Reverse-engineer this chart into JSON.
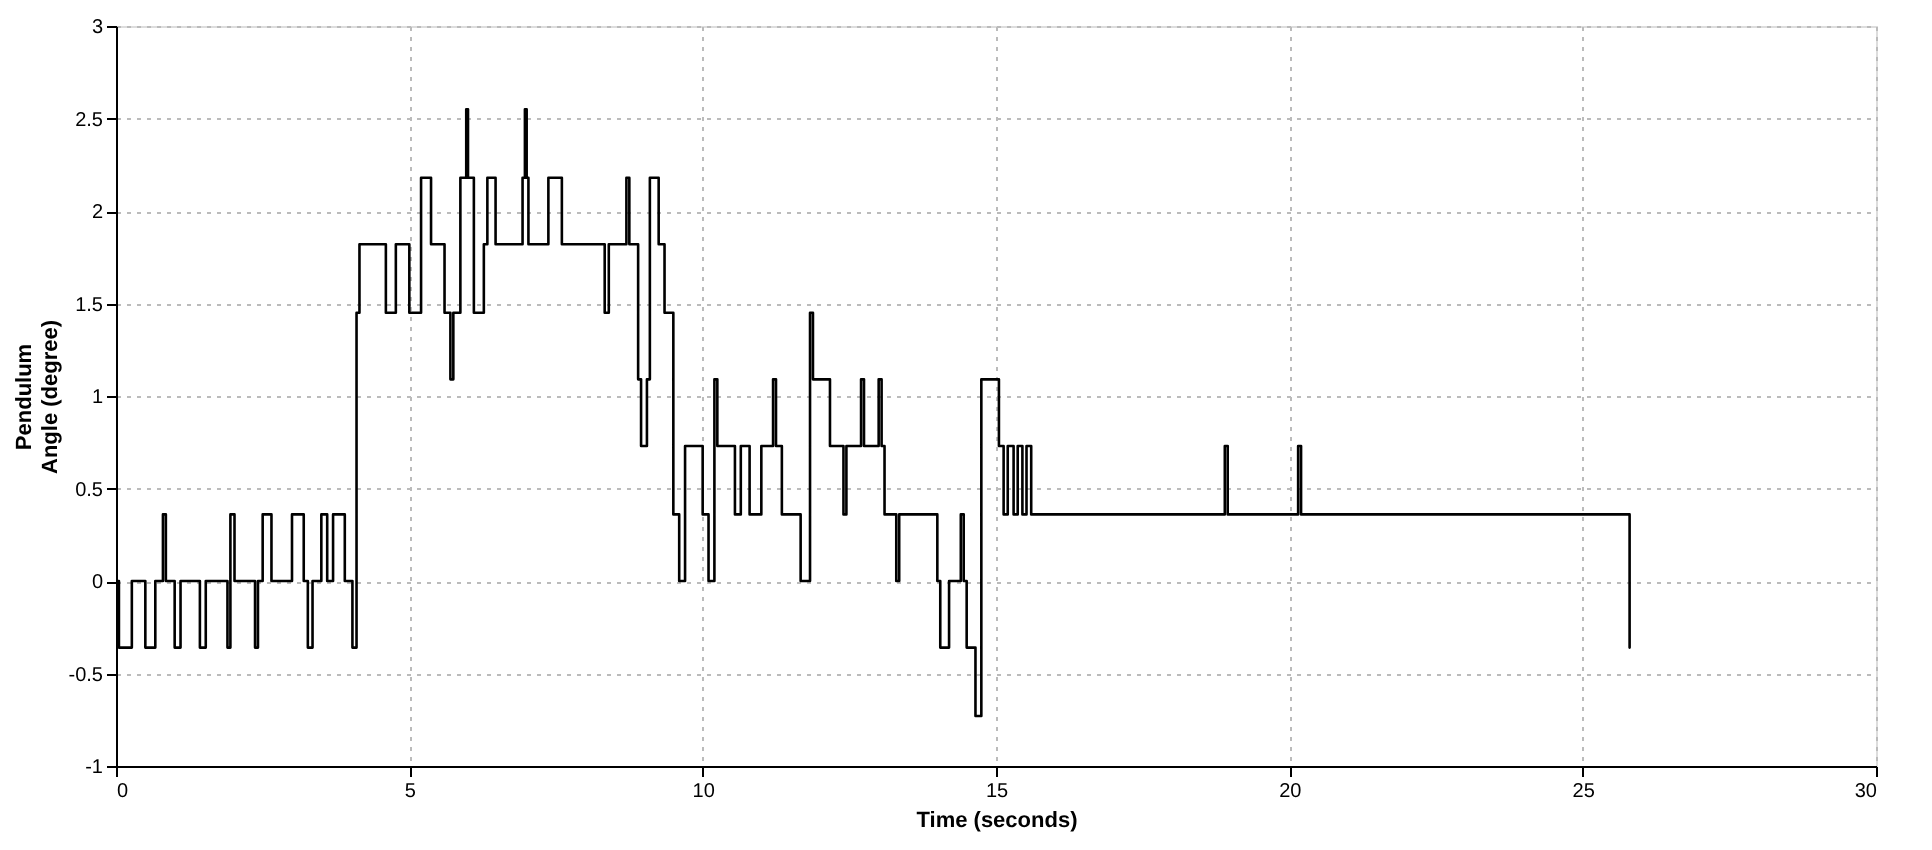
{
  "chart_data": {
    "type": "step",
    "xlabel": "Time (seconds)",
    "ylabel": "Pendulum Angle (degree)",
    "xlim": [
      0,
      30
    ],
    "xticks": [
      0,
      5,
      10,
      15,
      20,
      25,
      30
    ],
    "ylim": [
      -1,
      3
    ],
    "yticks": [
      -1,
      -0.5,
      0,
      0.5,
      1,
      1.5,
      2,
      2.5,
      3
    ],
    "grid": true,
    "line_style": "solid",
    "series": [
      {
        "color": "#000000",
        "x": [
          0,
          0.05,
          0.27,
          0.5,
          0.67,
          0.8,
          0.85,
          1.0,
          1.1,
          1.43,
          1.53,
          1.9,
          1.95,
          2.02,
          2.37,
          2.42,
          2.5,
          2.65,
          3.0,
          3.2,
          3.27,
          3.35,
          3.5,
          3.6,
          3.7,
          3.9,
          4.03,
          4.1,
          4.15,
          4.6,
          4.77,
          5.0,
          5.2,
          5.37,
          5.6,
          5.7,
          5.75,
          5.87,
          5.97,
          6.0,
          6.1,
          6.27,
          6.33,
          6.47,
          6.93,
          6.97,
          7.0,
          7.03,
          7.37,
          7.6,
          8.33,
          8.4,
          8.7,
          8.75,
          8.9,
          8.95,
          9.05,
          9.1,
          9.25,
          9.35,
          9.5,
          9.6,
          9.7,
          10.0,
          10.1,
          10.2,
          10.25,
          10.55,
          10.65,
          10.8,
          11.0,
          11.2,
          11.25,
          11.35,
          11.67,
          11.83,
          11.88,
          12.17,
          12.4,
          12.45,
          12.7,
          12.75,
          13.0,
          13.05,
          13.1,
          13.3,
          13.35,
          14.0,
          14.05,
          14.2,
          14.4,
          14.45,
          14.5,
          14.65,
          14.75,
          15.05,
          15.13,
          15.2,
          15.3,
          15.37,
          15.45,
          15.52,
          15.6,
          18.9,
          18.95,
          20.15,
          20.2,
          25.8
        ],
        "values": [
          0,
          -0.36,
          0,
          -0.36,
          0,
          0.36,
          0,
          -0.36,
          0,
          -0.36,
          0,
          -0.36,
          0.36,
          0,
          -0.36,
          0,
          0.36,
          0,
          0.36,
          0,
          -0.36,
          0,
          0.36,
          0,
          0.36,
          0,
          -0.36,
          1.45,
          1.82,
          1.45,
          1.82,
          1.45,
          2.18,
          1.82,
          1.45,
          1.09,
          1.45,
          2.18,
          2.55,
          2.18,
          1.45,
          1.82,
          2.18,
          1.82,
          2.18,
          2.55,
          2.18,
          1.82,
          2.18,
          1.82,
          1.45,
          1.82,
          2.18,
          1.82,
          1.09,
          0.73,
          1.09,
          2.18,
          1.82,
          1.45,
          0.36,
          0,
          0.73,
          0.36,
          0,
          1.09,
          0.73,
          0.36,
          0.73,
          0.36,
          0.73,
          1.09,
          0.73,
          0.36,
          0,
          1.45,
          1.09,
          0.73,
          0.36,
          0.73,
          1.09,
          0.73,
          1.09,
          0.73,
          0.36,
          0,
          0.36,
          0,
          -0.36,
          0,
          0.36,
          0,
          -0.36,
          -0.73,
          1.09,
          0.73,
          0.36,
          0.73,
          0.36,
          0.73,
          0.36,
          0.73,
          0.36,
          0.73,
          0.36,
          0.73,
          0.36,
          -0.36
        ]
      }
    ]
  }
}
